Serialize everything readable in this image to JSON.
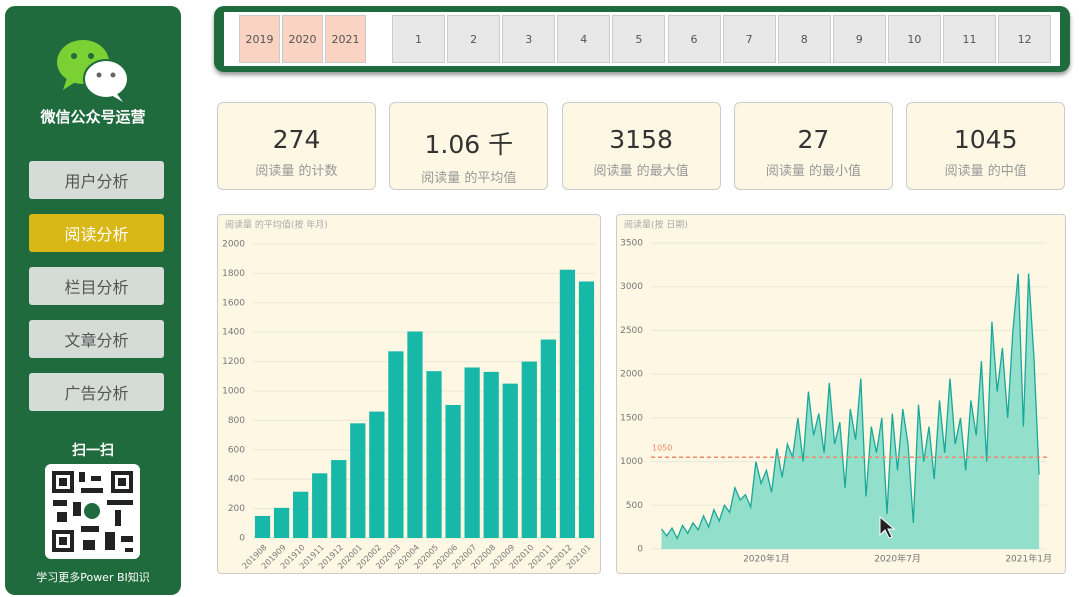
{
  "sidebar": {
    "title": "微信公众号运营",
    "nav": [
      "用户分析",
      "阅读分析",
      "栏目分析",
      "文章分析",
      "广告分析"
    ],
    "active_index": 1,
    "scan": "扫一扫",
    "footer": "学习更多Power BI知识"
  },
  "slicer": {
    "years": [
      2019,
      2020,
      2021
    ],
    "months": [
      1,
      2,
      3,
      4,
      5,
      6,
      7,
      8,
      9,
      10,
      11,
      12
    ]
  },
  "cards": [
    {
      "value": "274",
      "label": "阅读量 的计数"
    },
    {
      "value": "1.06 千",
      "label": "阅读量 的平均值"
    },
    {
      "value": "3158",
      "label": "阅读量 的最大值"
    },
    {
      "value": "27",
      "label": "阅读量 的最小值"
    },
    {
      "value": "1045",
      "label": "阅读量 的中值"
    }
  ],
  "chart_data": [
    {
      "type": "bar",
      "title": "阅读量 的平均值(按 年月)",
      "color": "#17b8a8",
      "categories": [
        "201908",
        "201909",
        "201910",
        "201911",
        "201912",
        "202001",
        "202002",
        "202003",
        "202004",
        "202005",
        "202006",
        "202007",
        "202008",
        "202009",
        "202010",
        "202011",
        "202012",
        "202101"
      ],
      "values": [
        150,
        205,
        315,
        440,
        530,
        780,
        860,
        1270,
        1405,
        1135,
        905,
        1160,
        1130,
        1050,
        1200,
        1350,
        1825,
        1745
      ],
      "ylim": [
        0,
        2000
      ],
      "yticks": [
        0,
        200,
        400,
        600,
        800,
        1000,
        1200,
        1400,
        1600,
        1800,
        2000
      ],
      "grid": true
    },
    {
      "type": "area",
      "title": "阅读量(按 日期)",
      "color": "#1aa89a",
      "fill": "#92dfcb",
      "ref_line": 1050,
      "ref_line_color": "#f08a6c",
      "x": [
        2019.6,
        2019.62,
        2019.64,
        2019.66,
        2019.68,
        2019.7,
        2019.72,
        2019.74,
        2019.76,
        2019.78,
        2019.8,
        2019.82,
        2019.84,
        2019.86,
        2019.88,
        2019.9,
        2019.92,
        2019.94,
        2019.96,
        2019.98,
        2020.0,
        2020.02,
        2020.04,
        2020.06,
        2020.08,
        2020.1,
        2020.12,
        2020.14,
        2020.16,
        2020.18,
        2020.2,
        2020.22,
        2020.24,
        2020.26,
        2020.28,
        2020.3,
        2020.32,
        2020.34,
        2020.36,
        2020.38,
        2020.4,
        2020.42,
        2020.44,
        2020.46,
        2020.48,
        2020.5,
        2020.52,
        2020.54,
        2020.56,
        2020.58,
        2020.6,
        2020.62,
        2020.64,
        2020.66,
        2020.68,
        2020.7,
        2020.72,
        2020.74,
        2020.76,
        2020.78,
        2020.8,
        2020.82,
        2020.84,
        2020.86,
        2020.88,
        2020.9,
        2020.92,
        2020.94,
        2020.96,
        2020.98,
        2021.0,
        2021.02,
        2021.04
      ],
      "values": [
        230,
        150,
        240,
        120,
        270,
        180,
        300,
        220,
        380,
        250,
        450,
        320,
        500,
        420,
        700,
        560,
        620,
        480,
        1000,
        750,
        900,
        650,
        1150,
        820,
        1200,
        1050,
        1500,
        1000,
        1800,
        1300,
        1550,
        1100,
        1900,
        1200,
        1450,
        700,
        1600,
        1250,
        1950,
        600,
        1400,
        1100,
        1500,
        400,
        1550,
        900,
        1600,
        1200,
        300,
        1650,
        1000,
        1400,
        800,
        1700,
        1100,
        1950,
        1200,
        1500,
        900,
        1700,
        1300,
        2150,
        1000,
        2600,
        1800,
        2300,
        1500,
        2500,
        3150,
        1400,
        3150,
        2200,
        850
      ],
      "xlim": [
        2019.56,
        2021.07
      ],
      "xticks": [
        {
          "value": 2020.0,
          "label": "2020年1月"
        },
        {
          "value": 2020.5,
          "label": "2020年7月"
        },
        {
          "value": 2021.0,
          "label": "2021年1月"
        }
      ],
      "ylim": [
        0,
        3500
      ],
      "yticks": [
        0,
        500,
        1000,
        1500,
        2000,
        2500,
        3000,
        3500
      ],
      "grid": true
    }
  ]
}
